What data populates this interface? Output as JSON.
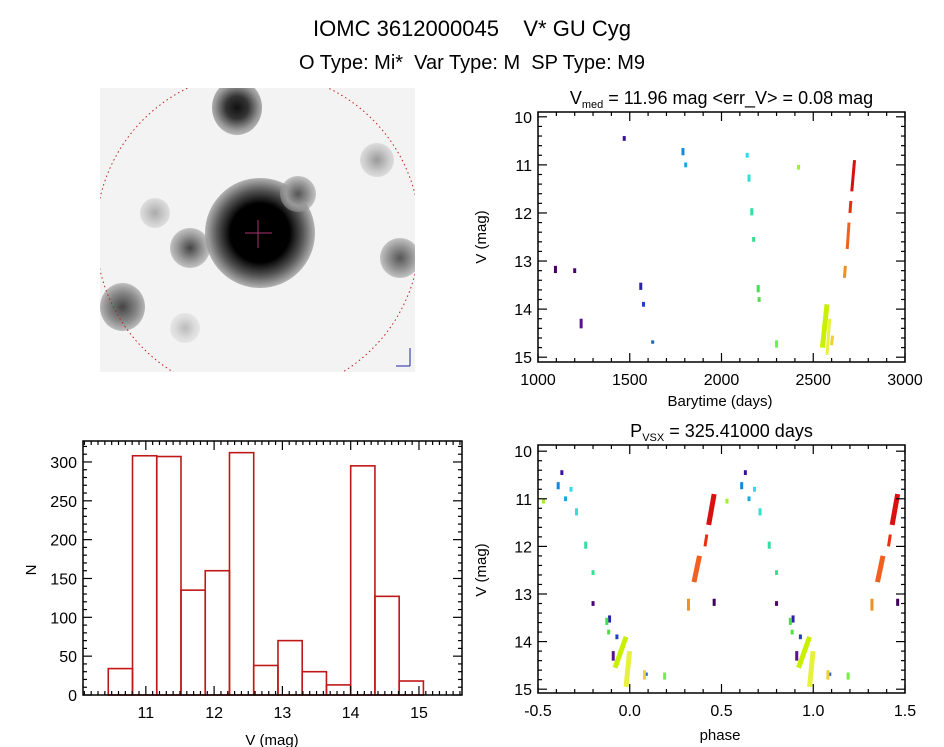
{
  "header": {
    "title": "IOMC 3612000045    V* GU Cyg",
    "subtitle": "O Type: Mi*  Var Type: M  SP Type: M9"
  },
  "colors": {
    "histogram": "#c01818",
    "axes": "#000000",
    "image_circle": "#c02020",
    "crosshair": "#b03070"
  },
  "chart_data": [
    {
      "id": "light-curve",
      "type": "scatter",
      "title_main": "V",
      "title_sub": "med",
      "title_rest": " = 11.96 mag <err_V> = 0.08 mag",
      "xlabel": "Barytime (days)",
      "ylabel": "V (mag)",
      "xlim": [
        1000,
        3000
      ],
      "ylim": [
        15.1,
        9.9
      ],
      "y_inverted": true,
      "xticks": [
        1000,
        1500,
        2000,
        2500,
        3000
      ],
      "yticks": [
        10,
        11,
        12,
        13,
        14,
        15
      ],
      "point_groups_columns": [
        "t_start",
        "t_end",
        "V_min",
        "V_max",
        "color"
      ],
      "point_groups": [
        [
          1095,
          1095,
          13.1,
          13.25,
          "#40005a"
        ],
        [
          1200,
          1200,
          13.15,
          13.25,
          "#4a0070"
        ],
        [
          1235,
          1235,
          14.2,
          14.4,
          "#5a1090"
        ],
        [
          1470,
          1470,
          10.4,
          10.5,
          "#3a10a0"
        ],
        [
          1560,
          1560,
          13.45,
          13.6,
          "#2a20b0"
        ],
        [
          1575,
          1575,
          13.85,
          13.95,
          "#2040c0"
        ],
        [
          1625,
          1625,
          14.65,
          14.72,
          "#2060d0"
        ],
        [
          1790,
          1790,
          10.65,
          10.8,
          "#1088e0"
        ],
        [
          1805,
          1805,
          10.95,
          11.05,
          "#18a8e0"
        ],
        [
          2140,
          2140,
          10.75,
          10.85,
          "#30d8f0"
        ],
        [
          2150,
          2150,
          11.2,
          11.35,
          "#30e0d0"
        ],
        [
          2165,
          2165,
          11.9,
          12.05,
          "#30e0a0"
        ],
        [
          2175,
          2175,
          12.5,
          12.6,
          "#30e090"
        ],
        [
          2200,
          2200,
          13.5,
          13.65,
          "#40e050"
        ],
        [
          2205,
          2205,
          13.75,
          13.85,
          "#50e040"
        ],
        [
          2300,
          2300,
          14.65,
          14.8,
          "#70f040"
        ],
        [
          2420,
          2420,
          11.0,
          11.1,
          "#a0f030"
        ],
        [
          2550,
          2575,
          13.9,
          14.8,
          "#c8f000"
        ],
        [
          2575,
          2590,
          14.2,
          14.95,
          "#e8f040"
        ],
        [
          2600,
          2605,
          14.55,
          14.75,
          "#f0d030"
        ],
        [
          2670,
          2675,
          13.1,
          13.35,
          "#f09020"
        ],
        [
          2685,
          2695,
          12.2,
          12.75,
          "#f06020"
        ],
        [
          2700,
          2705,
          11.75,
          12.0,
          "#e83010"
        ],
        [
          2710,
          2725,
          10.9,
          11.55,
          "#d81010"
        ]
      ]
    },
    {
      "id": "histogram",
      "type": "bar",
      "xlabel": "V (mag)",
      "ylabel": "N",
      "xlim": [
        10.08,
        15.63
      ],
      "ylim": [
        0,
        327
      ],
      "xticks": [
        11,
        12,
        13,
        14,
        15
      ],
      "yticks": [
        0,
        50,
        100,
        150,
        200,
        250,
        300
      ],
      "bin_start": 10.45,
      "bin_width": 0.355,
      "values": [
        34,
        308,
        307,
        135,
        160,
        312,
        38,
        70,
        30,
        13,
        295,
        127,
        18
      ]
    },
    {
      "id": "phase-curve",
      "type": "scatter",
      "title_main": "P",
      "title_sub": "VSX",
      "title_rest": " = 325.41000 days",
      "xlabel": "phase",
      "ylabel": "V (mag)",
      "xlim": [
        -0.5,
        1.5
      ],
      "ylim": [
        15.08,
        9.87
      ],
      "y_inverted": true,
      "xticks": [
        "-0.5",
        "0.0",
        "0.5",
        "1.0",
        "1.5"
      ],
      "yticks": [
        10,
        11,
        12,
        13,
        14,
        15
      ],
      "point_groups_columns": [
        "phase_start",
        "phase_end",
        "V_min",
        "V_max",
        "color"
      ],
      "point_groups": [
        [
          0.46,
          0.46,
          13.1,
          13.25,
          "#40005a"
        ],
        [
          0.8,
          0.8,
          13.15,
          13.25,
          "#4a0070"
        ],
        [
          0.91,
          0.91,
          14.2,
          14.4,
          "#5a1090"
        ],
        [
          0.63,
          0.63,
          10.4,
          10.5,
          "#3a10a0"
        ],
        [
          0.89,
          0.89,
          13.45,
          13.6,
          "#2a20b0"
        ],
        [
          0.93,
          0.93,
          13.85,
          13.95,
          "#2040c0"
        ],
        [
          0.09,
          0.09,
          14.65,
          14.72,
          "#2060d0"
        ],
        [
          0.61,
          0.61,
          10.65,
          10.8,
          "#1088e0"
        ],
        [
          0.65,
          0.65,
          10.95,
          11.05,
          "#18a8e0"
        ],
        [
          0.68,
          0.68,
          10.75,
          10.85,
          "#30d8f0"
        ],
        [
          0.71,
          0.71,
          11.2,
          11.35,
          "#30e0d0"
        ],
        [
          0.76,
          0.76,
          11.9,
          12.05,
          "#30e0a0"
        ],
        [
          0.8,
          0.8,
          12.5,
          12.6,
          "#30e090"
        ],
        [
          0.875,
          0.875,
          13.5,
          13.65,
          "#40e050"
        ],
        [
          0.885,
          0.885,
          13.75,
          13.85,
          "#50e040"
        ],
        [
          0.19,
          0.19,
          14.65,
          14.8,
          "#70f040"
        ],
        [
          0.53,
          0.53,
          11.0,
          11.1,
          "#a0f030"
        ],
        [
          0.92,
          0.98,
          13.9,
          14.55,
          "#c8f000"
        ],
        [
          0.98,
          0.999,
          14.2,
          14.95,
          "#e8f040"
        ],
        [
          0.08,
          0.08,
          14.6,
          14.8,
          "#f0d030"
        ],
        [
          0.32,
          0.32,
          13.1,
          13.35,
          "#f09020"
        ],
        [
          0.35,
          0.38,
          12.2,
          12.75,
          "#f06020"
        ],
        [
          0.41,
          0.42,
          11.75,
          12.0,
          "#e83010"
        ],
        [
          0.43,
          0.46,
          10.9,
          11.55,
          "#d81010"
        ]
      ]
    }
  ]
}
